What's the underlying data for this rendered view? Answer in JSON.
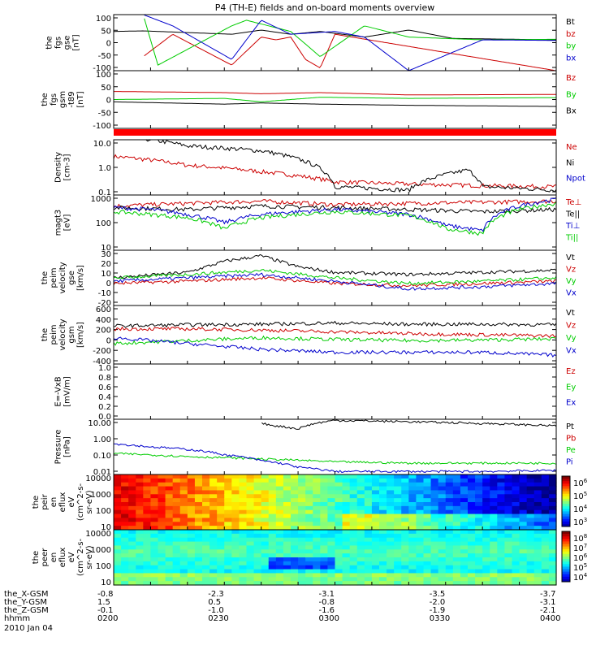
{
  "title": "P4 (TH-E) fields and on-board moments overview",
  "chart_data": [
    {
      "type": "line",
      "panel": "fgs-gse",
      "ylabel": [
        "the",
        "fgs",
        "gse",
        "[nT]"
      ],
      "yticks": [
        "100",
        "50",
        "0",
        "-50",
        "-100"
      ],
      "ylim": [
        -100,
        100
      ],
      "series": [
        {
          "name": "Bt",
          "color": "#000000",
          "x": [
            0,
            4,
            8,
            16,
            20,
            24,
            28,
            34,
            40,
            46,
            60
          ],
          "y": [
            40,
            42,
            38,
            30,
            45,
            30,
            40,
            20,
            45,
            15,
            10
          ]
        },
        {
          "name": "bz",
          "color": "#cc0000",
          "x": [
            4,
            8,
            16,
            20,
            22,
            24,
            26,
            28,
            30,
            60
          ],
          "y": [
            -50,
            30,
            -80,
            20,
            10,
            20,
            -60,
            -90,
            30,
            -100
          ]
        },
        {
          "name": "by",
          "color": "#00cc00",
          "x": [
            4,
            6,
            16,
            18,
            24,
            28,
            34,
            40,
            50,
            60
          ],
          "y": [
            100,
            -80,
            60,
            80,
            40,
            -50,
            60,
            20,
            10,
            12
          ]
        },
        {
          "name": "bx",
          "color": "#0000cc",
          "x": [
            4,
            8,
            16,
            20,
            24,
            30,
            34,
            40,
            50,
            60
          ],
          "y": [
            100,
            60,
            -60,
            80,
            30,
            40,
            20,
            -100,
            10,
            8
          ]
        }
      ]
    },
    {
      "type": "line",
      "panel": "fgs-gsm",
      "ylabel": [
        "the",
        "fgs",
        "gsm",
        "-t89",
        "[nT]"
      ],
      "yticks": [
        "100",
        "50",
        "0",
        "-50",
        "-100"
      ],
      "ylim": [
        -125,
        125
      ],
      "series": [
        {
          "name": "Bz",
          "color": "#cc0000",
          "x": [
            0,
            15,
            20,
            28,
            40,
            60
          ],
          "y": [
            35,
            30,
            25,
            30,
            20,
            22
          ]
        },
        {
          "name": "By",
          "color": "#00cc00",
          "x": [
            0,
            15,
            20,
            28,
            40,
            60
          ],
          "y": [
            0,
            5,
            -10,
            10,
            5,
            8
          ]
        },
        {
          "name": "Bx",
          "color": "#000000",
          "x": [
            0,
            15,
            20,
            28,
            40,
            60
          ],
          "y": [
            -10,
            -20,
            -15,
            -20,
            -25,
            -30
          ]
        }
      ]
    },
    {
      "type": "line",
      "panel": "density",
      "ylabel": [
        "Density",
        "[cm-3]"
      ],
      "yticks": [
        "10.0",
        "1.0",
        "0.1"
      ],
      "ylim": [
        0.1,
        10
      ],
      "yscale": "log",
      "series": [
        {
          "name": "Ne",
          "color": "#cc0000",
          "x": [
            0,
            10,
            20,
            25,
            30,
            40,
            50,
            60
          ],
          "y": [
            2.5,
            1.2,
            0.7,
            0.5,
            0.3,
            0.25,
            0.22,
            0.2
          ]
        },
        {
          "name": "Ni",
          "color": "#000000",
          "x": [
            0,
            5,
            10,
            15,
            20,
            25,
            30,
            40,
            48,
            50,
            60
          ],
          "y": [
            15,
            10,
            6,
            5,
            4,
            2.0,
            0.2,
            0.15,
            0.8,
            0.2,
            0.15
          ]
        },
        {
          "name": "Npot",
          "color": "#0000cc",
          "x": [],
          "y": []
        }
      ]
    },
    {
      "type": "line",
      "panel": "magt3",
      "ylabel": [
        "magt3",
        "[eV]"
      ],
      "yticks": [
        "1000",
        "100",
        "10"
      ],
      "ylim": [
        10,
        1000
      ],
      "yscale": "log",
      "series": [
        {
          "name": "Te⊥",
          "color": "#cc0000",
          "x": [
            0,
            10,
            20,
            30,
            40,
            50,
            60
          ],
          "y": [
            400,
            500,
            600,
            450,
            500,
            550,
            600
          ]
        },
        {
          "name": "Te||",
          "color": "#000000",
          "x": [
            0,
            10,
            20,
            30,
            40,
            50,
            60
          ],
          "y": [
            350,
            300,
            400,
            350,
            300,
            250,
            300
          ]
        },
        {
          "name": "Ti⊥",
          "color": "#0000cc",
          "x": [
            0,
            5,
            10,
            15,
            20,
            30,
            40,
            45,
            50,
            55,
            60
          ],
          "y": [
            350,
            300,
            200,
            100,
            200,
            300,
            200,
            80,
            50,
            400,
            700
          ]
        },
        {
          "name": "Ti||",
          "color": "#00cc00",
          "x": [
            0,
            5,
            10,
            15,
            20,
            30,
            40,
            45,
            50,
            55,
            60
          ],
          "y": [
            250,
            200,
            150,
            60,
            150,
            250,
            180,
            60,
            40,
            300,
            500
          ]
        }
      ]
    },
    {
      "type": "line",
      "panel": "peim-velocity-gse",
      "ylabel": [
        "the",
        "peim",
        "velocity",
        "gse",
        "[km/s]"
      ],
      "yticks": [
        "30",
        "20",
        "10",
        "0",
        "-10",
        "-20"
      ],
      "ylim": [
        -20,
        30
      ],
      "series": [
        {
          "name": "Vt",
          "color": "#000000",
          "x": [
            0,
            10,
            15,
            20,
            25,
            30,
            40,
            50,
            60
          ],
          "y": [
            5,
            10,
            20,
            25,
            15,
            10,
            8,
            10,
            12
          ]
        },
        {
          "name": "Vz",
          "color": "#cc0000",
          "x": [
            0,
            10,
            20,
            30,
            40,
            50,
            60
          ],
          "y": [
            0,
            2,
            5,
            0,
            -2,
            0,
            2
          ]
        },
        {
          "name": "Vy",
          "color": "#00cc00",
          "x": [
            0,
            10,
            20,
            30,
            40,
            50,
            60
          ],
          "y": [
            5,
            8,
            12,
            5,
            0,
            2,
            5
          ]
        },
        {
          "name": "Vx",
          "color": "#0000cc",
          "x": [
            0,
            10,
            20,
            30,
            40,
            50,
            60
          ],
          "y": [
            2,
            5,
            8,
            2,
            -5,
            -3,
            0
          ]
        }
      ]
    },
    {
      "type": "line",
      "panel": "peim-velocity-gsm",
      "ylabel": [
        "the",
        "peim",
        "velocity",
        "gsm",
        "[km/s]"
      ],
      "yticks": [
        "600",
        "400",
        "200",
        "0",
        "-200",
        "-400"
      ],
      "ylim": [
        -400,
        600
      ],
      "series": [
        {
          "name": "Vt",
          "color": "#000000",
          "x": [
            0,
            10,
            20,
            30,
            40,
            50,
            60
          ],
          "y": [
            250,
            270,
            280,
            300,
            280,
            280,
            270
          ]
        },
        {
          "name": "Vz",
          "color": "#cc0000",
          "x": [
            0,
            10,
            20,
            30,
            40,
            50,
            60
          ],
          "y": [
            200,
            200,
            180,
            150,
            120,
            100,
            80
          ]
        },
        {
          "name": "Vy",
          "color": "#00cc00",
          "x": [
            0,
            10,
            20,
            30,
            40,
            50,
            60
          ],
          "y": [
            -50,
            0,
            50,
            20,
            0,
            10,
            30
          ]
        },
        {
          "name": "Vx",
          "color": "#0000cc",
          "x": [
            0,
            10,
            20,
            30,
            40,
            50,
            60
          ],
          "y": [
            50,
            -50,
            -150,
            -200,
            -200,
            -200,
            -250
          ]
        }
      ]
    },
    {
      "type": "line",
      "panel": "efield",
      "ylabel": [
        "E=-VxB",
        "[mV/m]"
      ],
      "yticks": [
        "1.0",
        "0.8",
        "0.6",
        "0.4",
        "0.2",
        "0.0"
      ],
      "ylim": [
        0,
        1
      ],
      "series": [
        {
          "name": "Ez",
          "color": "#cc0000",
          "x": [],
          "y": []
        },
        {
          "name": "Ey",
          "color": "#00cc00",
          "x": [],
          "y": []
        },
        {
          "name": "Ex",
          "color": "#0000cc",
          "x": [],
          "y": []
        }
      ]
    },
    {
      "type": "line",
      "panel": "pressure",
      "ylabel": [
        "Pressure",
        "[nPa]"
      ],
      "yticks": [
        "10.00",
        "1.00",
        "0.10",
        "0.01"
      ],
      "ylim": [
        0.003,
        30
      ],
      "yscale": "log",
      "series": [
        {
          "name": "Pt",
          "color": "#000000",
          "x": [
            20,
            22,
            25,
            30,
            40,
            50,
            60
          ],
          "y": [
            15,
            10,
            6,
            25,
            20,
            15,
            10
          ]
        },
        {
          "name": "Pb",
          "color": "#cc0000",
          "x": [],
          "y": []
        },
        {
          "name": "Pe",
          "color": "#00cc00",
          "x": [
            0,
            10,
            20,
            30,
            40,
            50,
            60
          ],
          "y": [
            0.1,
            0.06,
            0.04,
            0.025,
            0.02,
            0.02,
            0.02
          ]
        },
        {
          "name": "Pi",
          "color": "#0000cc",
          "x": [
            0,
            5,
            10,
            15,
            20,
            25,
            30,
            40,
            50,
            60
          ],
          "y": [
            0.5,
            0.3,
            0.2,
            0.08,
            0.03,
            0.01,
            0.005,
            0.005,
            0.005,
            0.006
          ]
        }
      ]
    },
    {
      "type": "heatmap",
      "panel": "peir-en-eflux",
      "ylabel": [
        "the",
        "peir",
        "en",
        "eflux",
        "eV",
        "(cm^2-s-",
        "sr-eV)"
      ],
      "yticks": [
        "10000",
        "1000",
        "100",
        "10"
      ],
      "colorbar_ticks": [
        "10^6",
        "10^5",
        "10^4",
        "10^3"
      ]
    },
    {
      "type": "heatmap",
      "panel": "peer-en-eflux",
      "ylabel": [
        "the",
        "peer",
        "en",
        "eflux",
        "eV",
        "(cm^2-s-",
        "sr-eV)"
      ],
      "yticks": [
        "10000",
        "1000",
        "100",
        "10"
      ],
      "colorbar_ticks": [
        "10^8",
        "10^7",
        "10^6",
        "10^5",
        "10^4"
      ]
    }
  ],
  "xaxis": {
    "ticks_x_gsm": [
      "-0.8",
      "-2.3",
      "-3.1",
      "-3.5",
      "-3.7"
    ],
    "ticks_y_gsm": [
      "1.5",
      "0.5",
      "-0.8",
      "-2.0",
      "-3.1"
    ],
    "ticks_z_gsm": [
      "-0.1",
      "-1.0",
      "-1.6",
      "-1.9",
      "-2.1"
    ],
    "ticks_time": [
      "0200",
      "0230",
      "0300",
      "0330",
      "0400"
    ],
    "row_labels": [
      "the_X-GSM",
      "the_Y-GSM",
      "the_Z-GSM",
      "hhmm"
    ],
    "date": "2010 Jan 04"
  }
}
